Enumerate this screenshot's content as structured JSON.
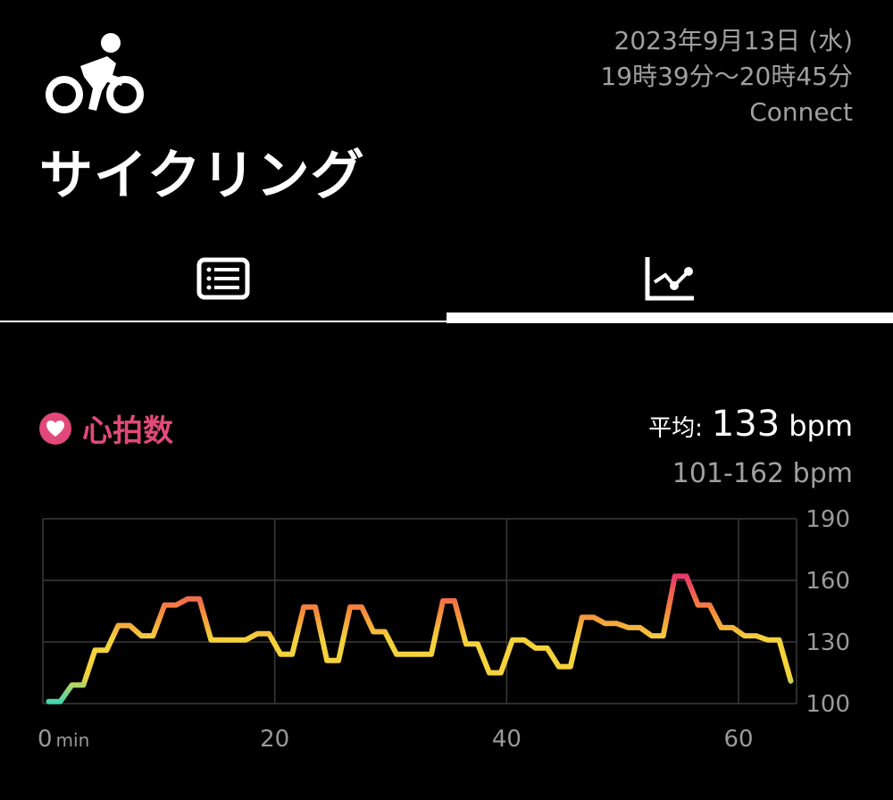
{
  "activity": {
    "icon": "cycling-icon",
    "title": "サイクリング"
  },
  "meta": {
    "date": "2023年9月13日 (水)",
    "time_range": "19時39分〜20時45分",
    "source": "Connect"
  },
  "tabs": [
    {
      "icon": "list-icon",
      "active": false
    },
    {
      "icon": "chart-icon",
      "active": true
    }
  ],
  "heart_rate": {
    "icon": "heart-icon",
    "label": "心拍数",
    "avg_label": "平均:",
    "avg_value": "133",
    "avg_unit": "bpm",
    "range": "101-162 bpm"
  },
  "colors": {
    "accent": "#e2497a",
    "low": "#3ad6b2",
    "mid": "#f4d23c",
    "high": "#f5893b",
    "peak": "#e8376a"
  },
  "chart_data": {
    "type": "line",
    "xlabel": "",
    "ylabel": "",
    "x_unit": "min",
    "x_ticks": [
      "0",
      "20",
      "40",
      "60"
    ],
    "y_ticks": [
      "190",
      "160",
      "130",
      "100"
    ],
    "xlim": [
      0,
      65
    ],
    "ylim": [
      100,
      190
    ],
    "grid": true,
    "series": [
      {
        "x": [
          0.5,
          1.5,
          2.5,
          3.5,
          4.5,
          5.5,
          6.5,
          7.5,
          8.5,
          9.5,
          10.5,
          11.5,
          12.5,
          13.5,
          14.5,
          15.5,
          16.5,
          17.5,
          18.5,
          19.5,
          20.5,
          21.5,
          22.5,
          23.5,
          24.5,
          25.5,
          26.5,
          27.5,
          28.5,
          29.5,
          30.5,
          31.5,
          32.5,
          33.5,
          34.5,
          35.5,
          36.5,
          37.5,
          38.5,
          39.5,
          40.5,
          41.5,
          42.5,
          43.5,
          44.5,
          45.5,
          46.5,
          47.5,
          48.5,
          49.5,
          50.5,
          51.5,
          52.5,
          53.5,
          54.5,
          55.5,
          56.5,
          57.5,
          58.5,
          59.5,
          60.5,
          61.5,
          62.5,
          63.5,
          64.5
        ],
        "values": [
          101,
          101,
          109,
          109,
          126,
          126,
          138,
          138,
          133,
          133,
          148,
          148,
          151,
          151,
          131,
          131,
          131,
          131,
          134,
          134,
          124,
          124,
          147,
          147,
          121,
          121,
          147,
          147,
          135,
          135,
          124,
          124,
          124,
          124,
          150,
          150,
          129,
          129,
          115,
          115,
          131,
          131,
          127,
          127,
          118,
          118,
          142,
          142,
          139,
          139,
          137,
          137,
          133,
          133,
          162,
          162,
          148,
          148,
          137,
          137,
          133,
          133,
          131,
          131,
          111
        ]
      }
    ]
  }
}
